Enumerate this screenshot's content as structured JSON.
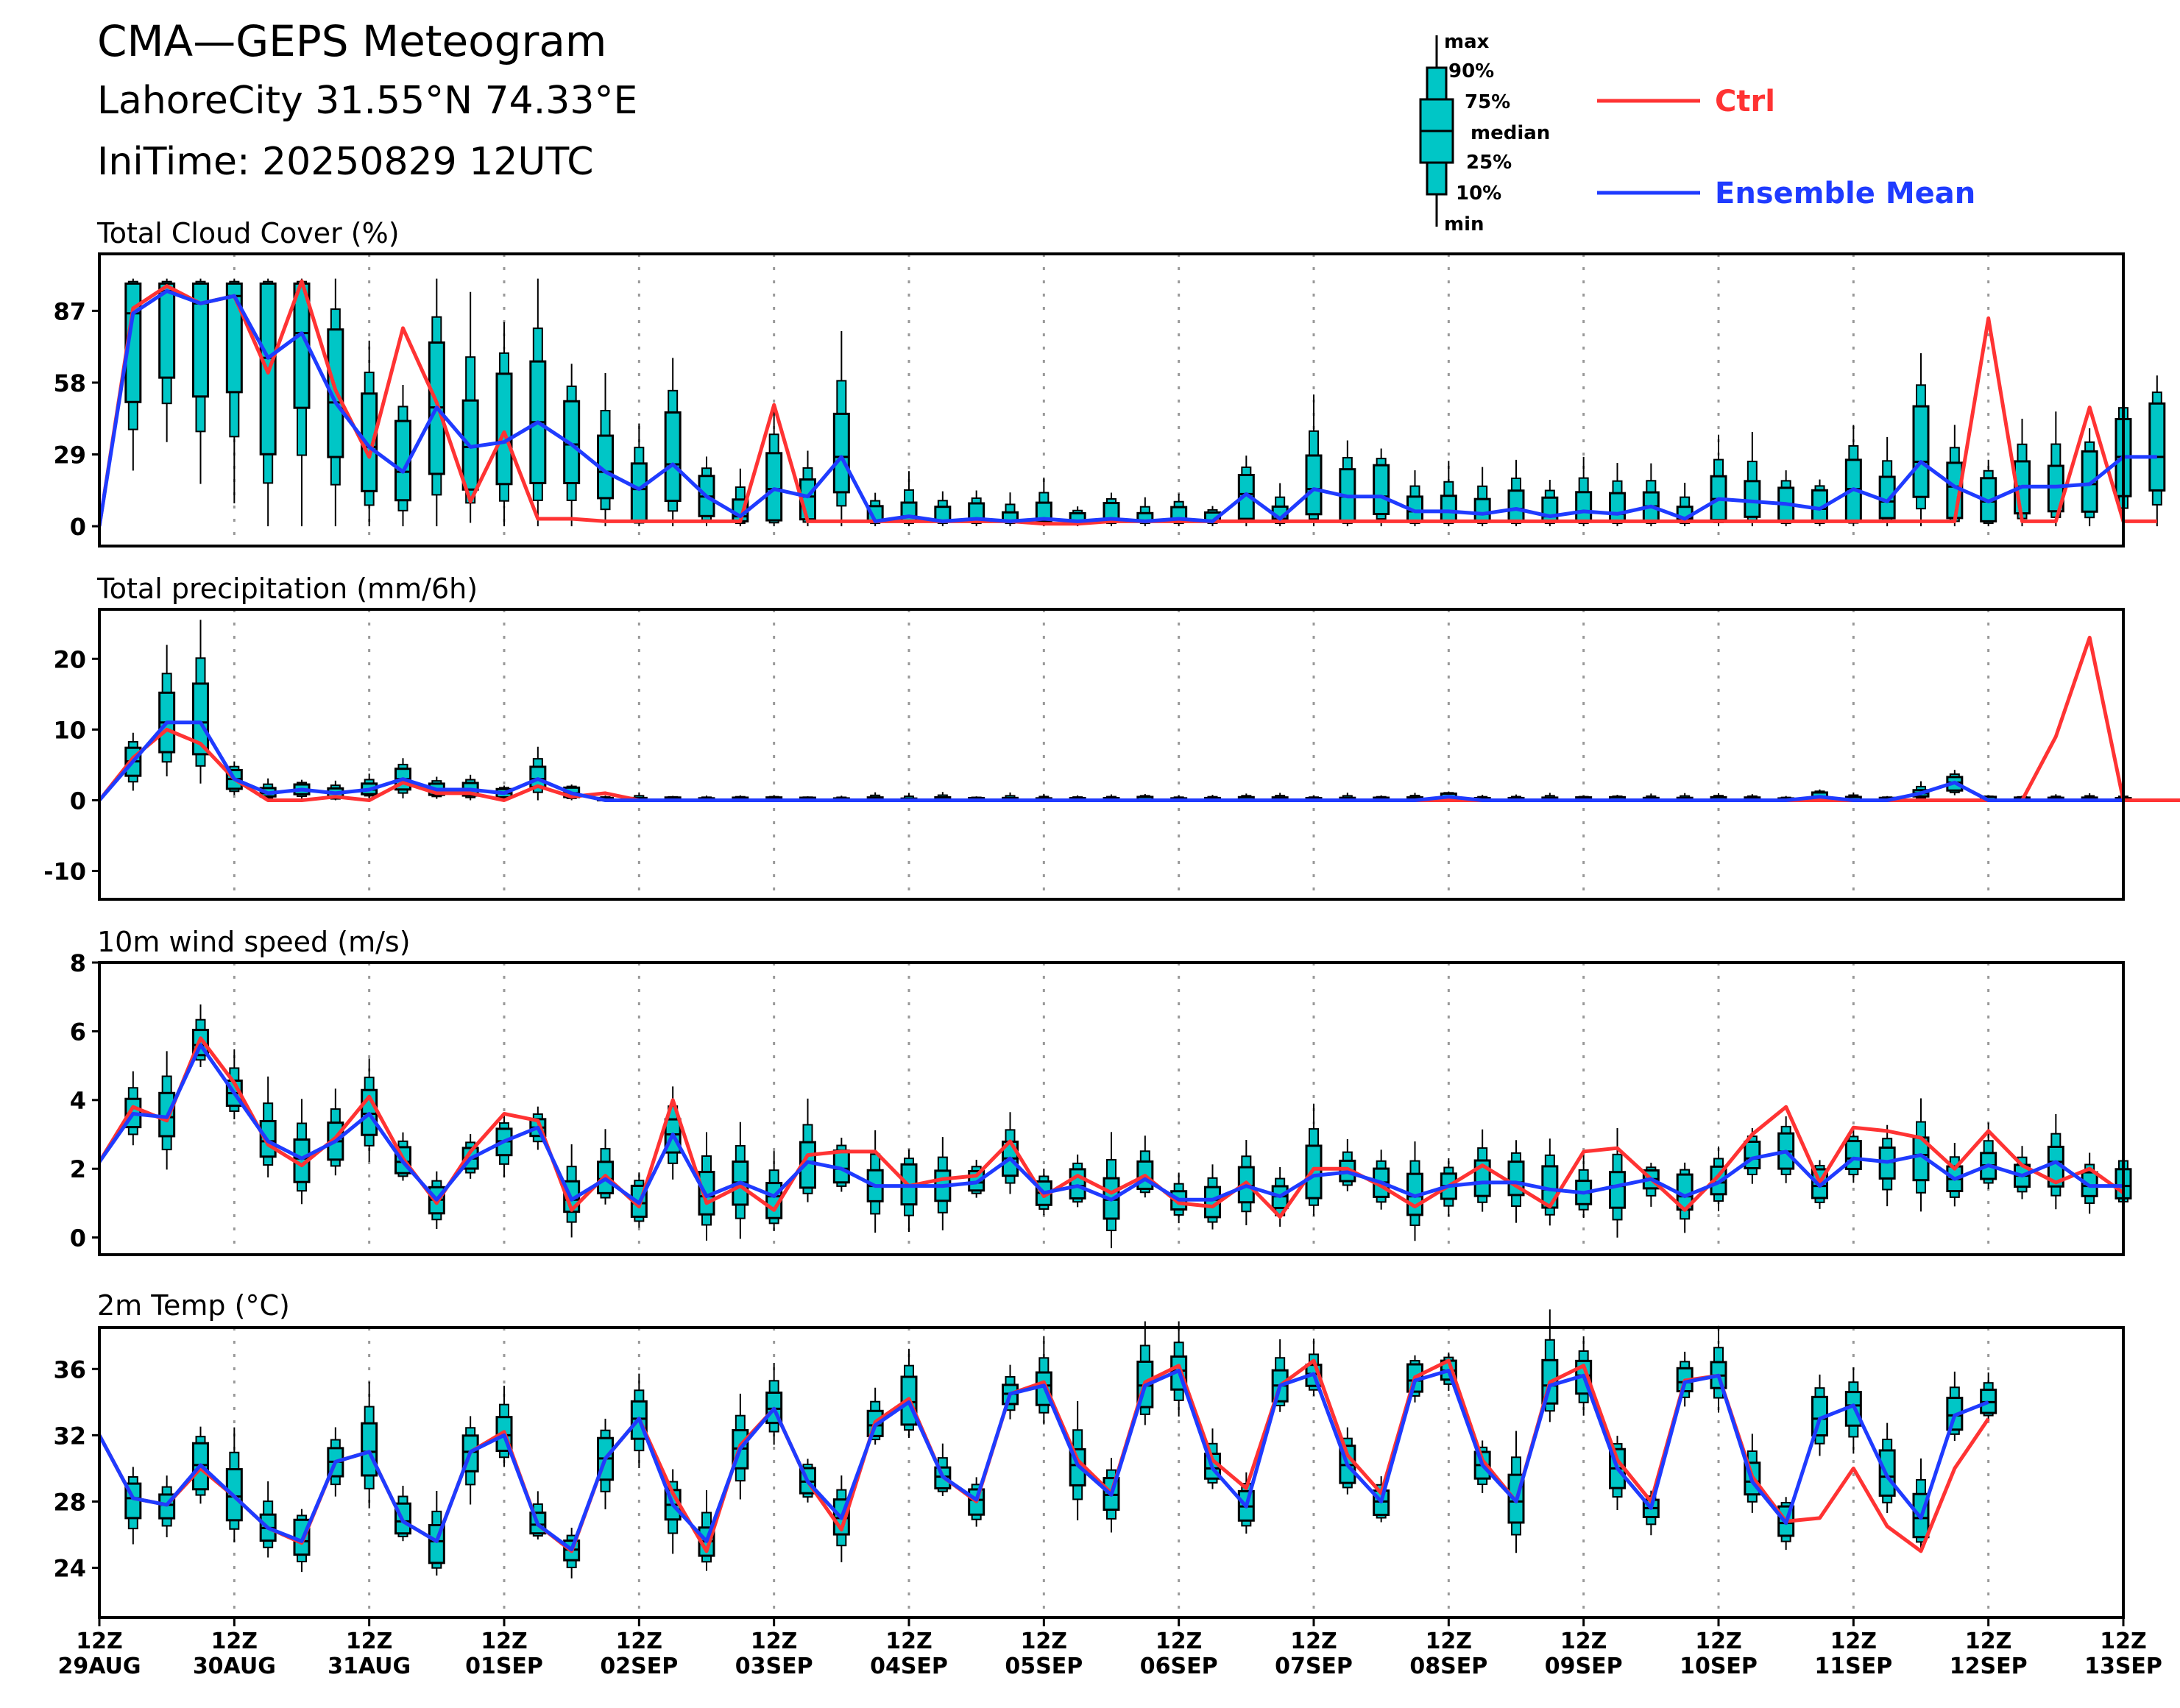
{
  "header": {
    "title": "CMA—GEPS Meteogram",
    "location": "LahoreCity 31.55°N 74.33°E",
    "init_time": "IniTime: 20250829 12UTC"
  },
  "legend": {
    "box_labels": {
      "max": "max",
      "p90": "90%",
      "p75": "75%",
      "median": "median",
      "p25": "25%",
      "p10": "10%",
      "min": "min"
    },
    "ctrl": "Ctrl",
    "mean": "Ensemble Mean",
    "colors": {
      "ctrl": "#ff3333",
      "mean": "#1f3bff",
      "box": "#00c6c6"
    }
  },
  "x_axis": {
    "ticks": [
      [
        "12Z",
        "29AUG"
      ],
      [
        "12Z",
        "30AUG"
      ],
      [
        "12Z",
        "31AUG"
      ],
      [
        "12Z",
        "01SEP"
      ],
      [
        "12Z",
        "02SEP"
      ],
      [
        "12Z",
        "03SEP"
      ],
      [
        "12Z",
        "04SEP"
      ],
      [
        "12Z",
        "05SEP"
      ],
      [
        "12Z",
        "06SEP"
      ],
      [
        "12Z",
        "07SEP"
      ],
      [
        "12Z",
        "08SEP"
      ],
      [
        "12Z",
        "09SEP"
      ],
      [
        "12Z",
        "10SEP"
      ],
      [
        "12Z",
        "11SEP"
      ],
      [
        "12Z",
        "12SEP"
      ],
      [
        "12Z",
        "13SEP"
      ]
    ]
  },
  "chart_data": [
    {
      "type": "box",
      "title": "Total Cloud Cover (%)",
      "ylim": [
        -8,
        110
      ],
      "yticks": [
        0,
        29,
        58,
        87
      ],
      "grid": "vertical dotted at 12Z",
      "series": [
        {
          "name": "Ctrl",
          "values": [
            0,
            88,
            97,
            90,
            93,
            62,
            99,
            55,
            28,
            80,
            50,
            10,
            38,
            3,
            3,
            2,
            2,
            2,
            2,
            2,
            49,
            2,
            2,
            2,
            2,
            2,
            2,
            2,
            1,
            1,
            2,
            2,
            2,
            2,
            2,
            2,
            2,
            2,
            2,
            2,
            2,
            2,
            2,
            2,
            2,
            2,
            2,
            2,
            2,
            2,
            2,
            2,
            2,
            2,
            2,
            2,
            84,
            2,
            2,
            48,
            2,
            2
          ]
        },
        {
          "name": "Ensemble Mean",
          "values": [
            0,
            86,
            95,
            90,
            93,
            68,
            78,
            50,
            32,
            22,
            48,
            32,
            34,
            42,
            33,
            22,
            15,
            25,
            12,
            4,
            15,
            12,
            28,
            2,
            4,
            2,
            3,
            2,
            3,
            2,
            3,
            2,
            3,
            2,
            13,
            3,
            15,
            12,
            12,
            6,
            6,
            5,
            7,
            4,
            6,
            5,
            8,
            3,
            11,
            10,
            9,
            7,
            15,
            10,
            26,
            16,
            10,
            16,
            16,
            17,
            28,
            28
          ]
        }
      ]
    },
    {
      "type": "box",
      "title": "Total precipitation (mm/6h)",
      "ylim": [
        -14,
        27
      ],
      "yticks": [
        -10,
        0,
        10,
        20
      ],
      "series": [
        {
          "name": "Ctrl",
          "values": [
            0,
            6,
            10,
            8,
            3,
            0,
            0,
            0.5,
            0,
            2.5,
            1,
            1,
            0,
            2,
            0.5,
            1,
            0,
            0,
            0,
            0,
            0,
            0,
            0,
            0,
            0,
            0,
            0,
            0,
            0,
            0,
            0,
            0,
            0,
            0,
            0,
            0,
            0,
            0,
            0,
            0,
            0,
            0,
            0,
            0,
            0,
            0,
            0,
            0,
            0,
            0,
            0,
            0,
            0,
            0,
            0,
            0,
            0,
            0,
            9,
            23,
            0,
            0,
            0,
            0
          ]
        },
        {
          "name": "Ensemble Mean",
          "values": [
            0,
            5.5,
            11,
            11,
            3,
            1,
            1.5,
            1,
            1.5,
            3,
            1.5,
            1.5,
            1,
            3,
            1,
            0,
            0,
            0,
            0,
            0,
            0,
            0,
            0,
            0,
            0,
            0,
            0,
            0,
            0,
            0,
            0,
            0,
            0,
            0,
            0,
            0,
            0,
            0,
            0,
            0,
            0.5,
            0,
            0,
            0,
            0,
            0,
            0,
            0,
            0,
            0,
            0,
            0.5,
            0,
            0,
            1,
            2.5,
            0,
            0,
            0,
            0,
            0
          ]
        }
      ]
    },
    {
      "type": "box",
      "title": "10m wind speed (m/s)",
      "ylim": [
        -0.5,
        8
      ],
      "yticks": [
        0,
        2,
        4,
        6,
        8
      ],
      "series": [
        {
          "name": "Ctrl",
          "values": [
            2.2,
            3.8,
            3.4,
            5.8,
            4.5,
            2.7,
            2.1,
            2.9,
            4.1,
            2.3,
            1,
            2.5,
            3.6,
            3.4,
            0.8,
            1.8,
            0.9,
            4,
            1,
            1.5,
            0.8,
            2.4,
            2.5,
            2.5,
            1.5,
            1.7,
            1.8,
            2.8,
            1.2,
            1.8,
            1.3,
            1.8,
            1,
            0.9,
            1.6,
            0.6,
            2,
            2,
            1.5,
            0.9,
            1.5,
            2.1,
            1.5,
            0.9,
            2.5,
            2.6,
            1.7,
            0.8,
            1.8,
            3,
            3.8,
            1.6,
            3.2,
            3.1,
            2.9,
            2,
            3.1,
            2.1,
            1.6,
            2,
            1.3
          ]
        },
        {
          "name": "Ensemble Mean",
          "values": [
            2.2,
            3.6,
            3.5,
            5.6,
            4.2,
            2.8,
            2.3,
            2.8,
            3.6,
            2.2,
            1.1,
            2.3,
            2.8,
            3.2,
            1.1,
            1.7,
            1,
            3,
            1.2,
            1.6,
            1.2,
            2.2,
            2,
            1.5,
            1.5,
            1.5,
            1.6,
            2.3,
            1.3,
            1.5,
            1.1,
            1.7,
            1.1,
            1.1,
            1.5,
            1.2,
            1.8,
            1.9,
            1.6,
            1.2,
            1.5,
            1.6,
            1.6,
            1.4,
            1.3,
            1.5,
            1.7,
            1.2,
            1.6,
            2.3,
            2.5,
            1.5,
            2.3,
            2.2,
            2.4,
            1.7,
            2.1,
            1.8,
            2.2,
            1.5,
            1.5
          ]
        }
      ]
    },
    {
      "type": "box",
      "title": "2m Temp (°C)",
      "ylim": [
        21,
        38.5
      ],
      "yticks": [
        24,
        28,
        32,
        36
      ],
      "series": [
        {
          "name": "Ctrl",
          "values": [
            32,
            28.2,
            27.8,
            30,
            28.3,
            26.4,
            25.5,
            30.4,
            31,
            26.8,
            25.6,
            31,
            32.2,
            26.6,
            25,
            30.6,
            33,
            28.5,
            25,
            31.4,
            33.6,
            29.2,
            26.3,
            32.8,
            34.2,
            29.5,
            28,
            34.5,
            35.2,
            30.5,
            28.5,
            35.2,
            36.2,
            30.5,
            28.8,
            35,
            36.5,
            30.8,
            28.5,
            35.5,
            36.5,
            30.5,
            28,
            35.2,
            36.2,
            30.5,
            28,
            35.3,
            35.6,
            29.5,
            26.8,
            27,
            30,
            26.5,
            25,
            30,
            33
          ]
        },
        {
          "name": "Ensemble Mean",
          "values": [
            32,
            28.2,
            27.8,
            30.2,
            28.3,
            26.4,
            25.6,
            30.4,
            31,
            26.8,
            25.6,
            31,
            32,
            26.6,
            25.1,
            30.6,
            33,
            27.8,
            25.6,
            31.2,
            33.6,
            29.2,
            27,
            32.6,
            34,
            29.5,
            28.1,
            34.5,
            35,
            30.2,
            28.4,
            35,
            35.9,
            30,
            27.7,
            35,
            35.7,
            30.2,
            28,
            35.3,
            35.9,
            30.2,
            28,
            35,
            35.6,
            30,
            27.6,
            35.2,
            35.6,
            29.2,
            26.7,
            33,
            33.8,
            29.5,
            27,
            33.2,
            34
          ]
        }
      ]
    }
  ]
}
